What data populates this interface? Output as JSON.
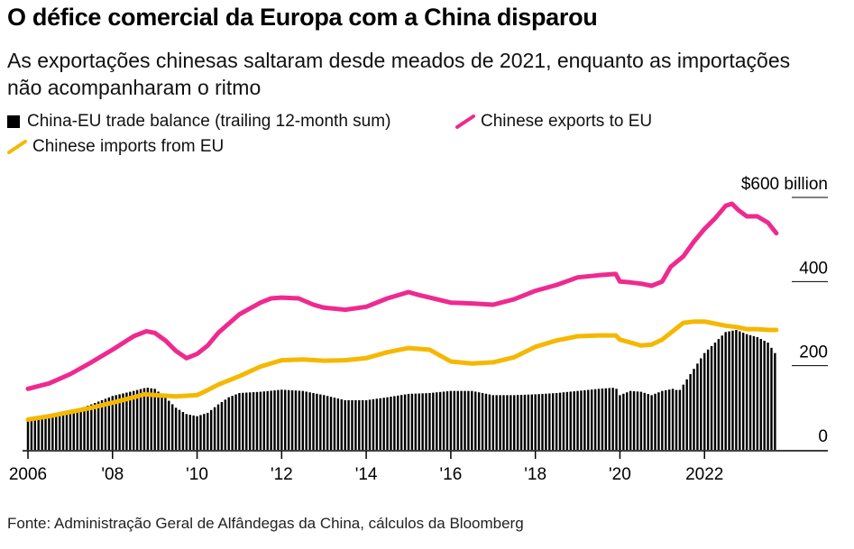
{
  "header": {
    "title": "O défice comercial da Europa com a China disparou",
    "subtitle": "As exportações chinesas saltaram desde meados de 2021, enquanto as importações não acompanharam o ritmo"
  },
  "legend": {
    "items": [
      {
        "label": "China-EU trade balance (trailing 12-month sum)",
        "color": "#000000",
        "symbol": "square"
      },
      {
        "label": "Chinese exports to EU",
        "color": "#ee2a90",
        "symbol": "line"
      },
      {
        "label": "Chinese imports from EU",
        "color": "#f5b800",
        "symbol": "line"
      }
    ]
  },
  "footer": {
    "source": "Fonte: Administração Geral de Alfândegas da China, cálculos da Bloomberg"
  },
  "chart_data": {
    "type": "bar+line",
    "title": "O défice comercial da Europa com a China disparou",
    "ylabel": "",
    "ylim": [
      0,
      600
    ],
    "xlim": [
      2006.0,
      2024.0
    ],
    "y_ticks": [
      {
        "value": 0,
        "label": "0"
      },
      {
        "value": 200,
        "label": "200"
      },
      {
        "value": 400,
        "label": "400"
      },
      {
        "value": 600,
        "label": "$600 billion"
      }
    ],
    "x_ticks": [
      {
        "value": 2006,
        "label": "2006"
      },
      {
        "value": 2008,
        "label": "'08"
      },
      {
        "value": 2010,
        "label": "'10"
      },
      {
        "value": 2012,
        "label": "'12"
      },
      {
        "value": 2014,
        "label": "'14"
      },
      {
        "value": 2016,
        "label": "'16"
      },
      {
        "value": 2018,
        "label": "'18"
      },
      {
        "value": 2020,
        "label": "'20"
      },
      {
        "value": 2022,
        "label": "2022"
      }
    ],
    "grid": false,
    "legend_position": "top",
    "colors": {
      "balance": "#000000",
      "exports": "#ee2a90",
      "imports": "#f5b800"
    },
    "series": [
      {
        "name": "China-EU trade balance (trailing 12-month sum)",
        "type": "bar",
        "note_units": "billions of US dollars",
        "points": [
          [
            2006.0,
            68
          ],
          [
            2006.5,
            75
          ],
          [
            2007.0,
            90
          ],
          [
            2007.5,
            108
          ],
          [
            2008.0,
            128
          ],
          [
            2008.5,
            140
          ],
          [
            2008.8,
            148
          ],
          [
            2009.0,
            145
          ],
          [
            2009.25,
            125
          ],
          [
            2009.5,
            100
          ],
          [
            2009.75,
            85
          ],
          [
            2010.0,
            80
          ],
          [
            2010.25,
            88
          ],
          [
            2010.5,
            108
          ],
          [
            2010.75,
            125
          ],
          [
            2011.0,
            135
          ],
          [
            2011.5,
            138
          ],
          [
            2012.0,
            143
          ],
          [
            2012.5,
            140
          ],
          [
            2013.0,
            130
          ],
          [
            2013.5,
            118
          ],
          [
            2014.0,
            118
          ],
          [
            2014.5,
            125
          ],
          [
            2015.0,
            133
          ],
          [
            2015.5,
            135
          ],
          [
            2016.0,
            140
          ],
          [
            2016.5,
            140
          ],
          [
            2017.0,
            130
          ],
          [
            2017.5,
            130
          ],
          [
            2018.0,
            132
          ],
          [
            2018.5,
            135
          ],
          [
            2019.0,
            140
          ],
          [
            2019.5,
            145
          ],
          [
            2019.9,
            148
          ],
          [
            2020.0,
            130
          ],
          [
            2020.25,
            140
          ],
          [
            2020.5,
            138
          ],
          [
            2020.75,
            130
          ],
          [
            2021.0,
            140
          ],
          [
            2021.25,
            145
          ],
          [
            2021.4,
            140
          ],
          [
            2021.6,
            170
          ],
          [
            2021.8,
            200
          ],
          [
            2022.0,
            230
          ],
          [
            2022.25,
            255
          ],
          [
            2022.5,
            280
          ],
          [
            2022.75,
            285
          ],
          [
            2023.0,
            275
          ],
          [
            2023.25,
            268
          ],
          [
            2023.5,
            255
          ],
          [
            2023.7,
            225
          ]
        ]
      },
      {
        "name": "Chinese exports to EU",
        "type": "line",
        "points": [
          [
            2006.0,
            145
          ],
          [
            2006.5,
            158
          ],
          [
            2007.0,
            180
          ],
          [
            2007.5,
            208
          ],
          [
            2008.0,
            238
          ],
          [
            2008.5,
            270
          ],
          [
            2008.8,
            282
          ],
          [
            2009.0,
            278
          ],
          [
            2009.25,
            260
          ],
          [
            2009.5,
            235
          ],
          [
            2009.75,
            218
          ],
          [
            2010.0,
            228
          ],
          [
            2010.25,
            248
          ],
          [
            2010.5,
            278
          ],
          [
            2010.75,
            300
          ],
          [
            2011.0,
            322
          ],
          [
            2011.5,
            350
          ],
          [
            2011.75,
            360
          ],
          [
            2012.0,
            362
          ],
          [
            2012.4,
            360
          ],
          [
            2012.75,
            345
          ],
          [
            2013.0,
            338
          ],
          [
            2013.5,
            333
          ],
          [
            2014.0,
            340
          ],
          [
            2014.5,
            360
          ],
          [
            2015.0,
            375
          ],
          [
            2015.25,
            368
          ],
          [
            2015.5,
            362
          ],
          [
            2016.0,
            350
          ],
          [
            2016.5,
            348
          ],
          [
            2017.0,
            345
          ],
          [
            2017.5,
            358
          ],
          [
            2018.0,
            378
          ],
          [
            2018.5,
            392
          ],
          [
            2019.0,
            410
          ],
          [
            2019.5,
            415
          ],
          [
            2019.9,
            418
          ],
          [
            2020.0,
            400
          ],
          [
            2020.25,
            398
          ],
          [
            2020.5,
            395
          ],
          [
            2020.75,
            390
          ],
          [
            2021.0,
            400
          ],
          [
            2021.2,
            435
          ],
          [
            2021.5,
            460
          ],
          [
            2021.75,
            495
          ],
          [
            2022.0,
            525
          ],
          [
            2022.25,
            550
          ],
          [
            2022.5,
            580
          ],
          [
            2022.65,
            585
          ],
          [
            2022.8,
            570
          ],
          [
            2023.0,
            555
          ],
          [
            2023.25,
            555
          ],
          [
            2023.5,
            540
          ],
          [
            2023.7,
            515
          ]
        ]
      },
      {
        "name": "Chinese imports from EU",
        "type": "line",
        "points": [
          [
            2006.0,
            72
          ],
          [
            2006.5,
            80
          ],
          [
            2007.0,
            90
          ],
          [
            2007.5,
            100
          ],
          [
            2008.0,
            112
          ],
          [
            2008.5,
            125
          ],
          [
            2008.75,
            132
          ],
          [
            2009.0,
            130
          ],
          [
            2009.5,
            127
          ],
          [
            2010.0,
            130
          ],
          [
            2010.25,
            142
          ],
          [
            2010.5,
            155
          ],
          [
            2011.0,
            175
          ],
          [
            2011.5,
            198
          ],
          [
            2012.0,
            213
          ],
          [
            2012.5,
            215
          ],
          [
            2013.0,
            212
          ],
          [
            2013.5,
            213
          ],
          [
            2014.0,
            218
          ],
          [
            2014.5,
            232
          ],
          [
            2015.0,
            242
          ],
          [
            2015.5,
            238
          ],
          [
            2016.0,
            210
          ],
          [
            2016.5,
            205
          ],
          [
            2017.0,
            208
          ],
          [
            2017.5,
            220
          ],
          [
            2018.0,
            245
          ],
          [
            2018.5,
            260
          ],
          [
            2019.0,
            270
          ],
          [
            2019.5,
            272
          ],
          [
            2019.9,
            272
          ],
          [
            2020.0,
            262
          ],
          [
            2020.25,
            255
          ],
          [
            2020.5,
            248
          ],
          [
            2020.75,
            250
          ],
          [
            2021.0,
            262
          ],
          [
            2021.25,
            282
          ],
          [
            2021.5,
            302
          ],
          [
            2021.75,
            305
          ],
          [
            2022.0,
            305
          ],
          [
            2022.25,
            300
          ],
          [
            2022.5,
            295
          ],
          [
            2022.75,
            292
          ],
          [
            2023.0,
            287
          ],
          [
            2023.25,
            287
          ],
          [
            2023.5,
            285
          ],
          [
            2023.7,
            285
          ]
        ]
      }
    ]
  }
}
